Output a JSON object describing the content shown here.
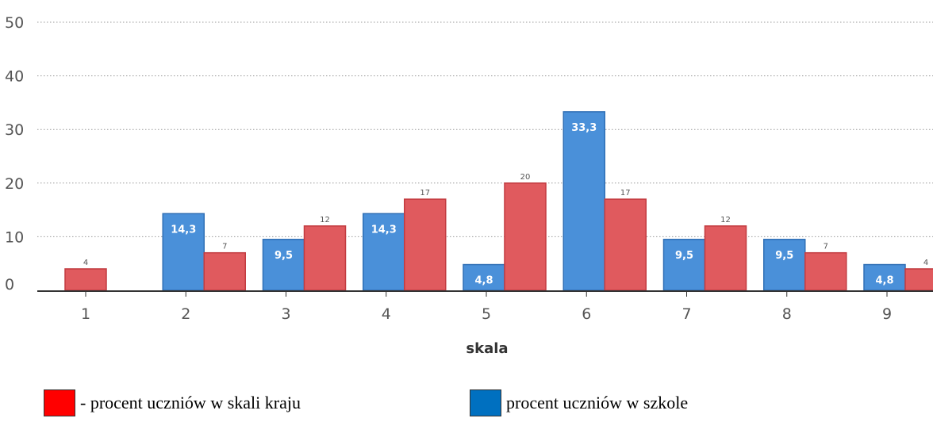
{
  "chart_data": {
    "type": "bar",
    "categories": [
      "1",
      "2",
      "3",
      "4",
      "5",
      "6",
      "7",
      "8",
      "9"
    ],
    "series": [
      {
        "name": "procent uczniów w szkole",
        "color": "#4a90d9",
        "values": [
          null,
          14.3,
          9.5,
          14.3,
          4.8,
          33.3,
          9.5,
          9.5,
          4.8
        ],
        "labels": [
          "",
          "14,3",
          "9,5",
          "14,3",
          "4,8",
          "33,3",
          "9,5",
          "9,5",
          "4,8"
        ]
      },
      {
        "name": "procent uczniów w skali kraju",
        "color": "#e05a5e",
        "values": [
          4,
          7,
          12,
          17,
          20,
          17,
          12,
          7,
          4
        ],
        "labels": [
          "4",
          "7",
          "12",
          "17",
          "20",
          "17",
          "12",
          "7",
          "4"
        ]
      }
    ],
    "y_ticks": [
      "0",
      "10",
      "20",
      "30",
      "40",
      "50"
    ],
    "ylim": [
      0,
      50
    ],
    "xlabel": "skala",
    "grid": true
  },
  "legend": {
    "items": [
      {
        "label": "- procent uczniów w skali kraju",
        "color": "#ff0000"
      },
      {
        "label": "procent uczniów w szkole",
        "color": "#0070c0"
      }
    ]
  }
}
